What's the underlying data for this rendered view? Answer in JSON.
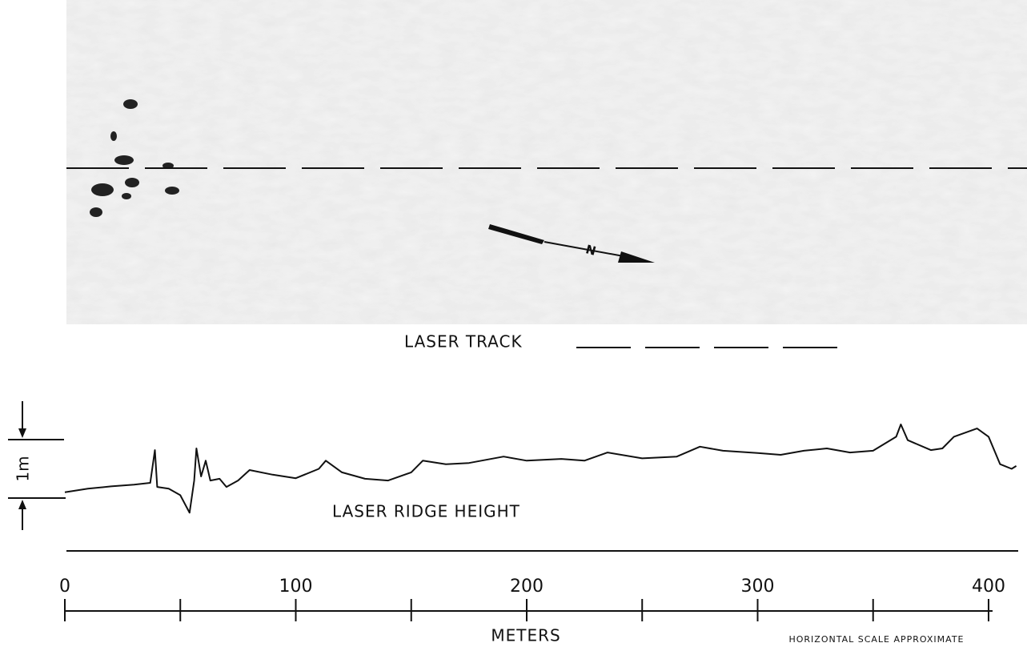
{
  "photo": {
    "north_label": "N"
  },
  "chart_data": {
    "type": "line",
    "track_label": "LASER TRACK",
    "x": [
      0,
      10,
      20,
      30,
      37,
      39,
      40,
      45,
      50,
      54,
      56,
      57,
      59,
      61,
      63,
      67,
      70,
      75,
      80,
      90,
      100,
      110,
      113,
      120,
      130,
      140,
      150,
      155,
      165,
      175,
      190,
      200,
      215,
      225,
      235,
      250,
      265,
      275,
      285,
      300,
      310,
      320,
      330,
      340,
      350,
      360,
      362,
      365,
      375,
      380,
      385,
      395,
      400,
      405,
      410,
      412
    ],
    "series": [
      {
        "name": "LASER RIDGE HEIGHT",
        "color": "#111111",
        "values": [
          0.1,
          0.16,
          0.2,
          0.23,
          0.26,
          0.82,
          0.19,
          0.16,
          0.05,
          -0.25,
          0.3,
          0.85,
          0.37,
          0.64,
          0.3,
          0.33,
          0.19,
          0.3,
          0.48,
          0.4,
          0.34,
          0.5,
          0.64,
          0.44,
          0.33,
          0.3,
          0.44,
          0.64,
          0.58,
          0.6,
          0.71,
          0.64,
          0.67,
          0.64,
          0.78,
          0.68,
          0.71,
          0.88,
          0.81,
          0.77,
          0.74,
          0.81,
          0.85,
          0.78,
          0.81,
          1.05,
          1.26,
          0.99,
          0.82,
          0.85,
          1.05,
          1.19,
          1.05,
          0.58,
          0.5,
          0.55
        ]
      }
    ],
    "xlim": [
      0,
      412
    ],
    "xticks": [
      0,
      100,
      200,
      300,
      400
    ],
    "minor_xticks": [
      50,
      150,
      250,
      350
    ],
    "xlabel": "METERS",
    "note": "HORIZONTAL SCALE APPROXIMATE",
    "ylim": [
      -0.5,
      1.5
    ],
    "scale_bar": {
      "value": 1,
      "label": "1m"
    }
  }
}
